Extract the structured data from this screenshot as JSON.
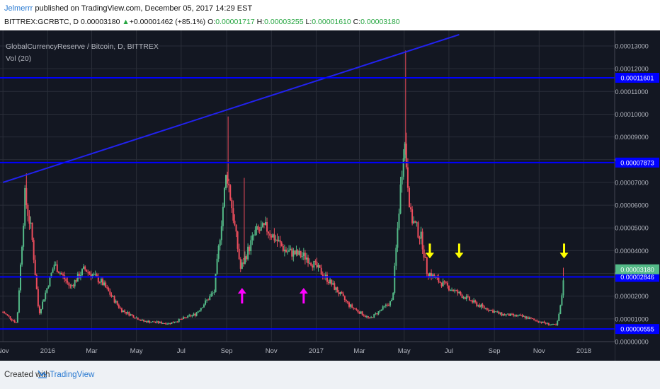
{
  "header": {
    "author": "Jelmerrr",
    "published": " published on TradingView.com, December 05, 2017 14:29 EST",
    "symbol": "BITTREX:GCRBTC, D",
    "last": "0.00003180",
    "change": "+0.00001462 (+85.1%)",
    "o_label": "O:",
    "o_val": "0.00001717",
    "h_label": "H:",
    "h_val": "0.00003255",
    "l_label": "L:",
    "l_val": "0.00001610",
    "c_label": "C:",
    "c_val": "0.00003180"
  },
  "legend": {
    "title": "GlobalCurrencyReserve / Bitcoin, D, BITTREX",
    "vol": "Vol (20)"
  },
  "footer": {
    "created": "Created with",
    "brand": "TradingView"
  },
  "colors": {
    "bg": "#131722",
    "grid": "#2a2e39",
    "up": "#53b987",
    "down": "#eb4d5c",
    "hline": "#0000ff",
    "trend": "#2222ee",
    "yellow": "#ffff00",
    "magenta": "#ff00ff",
    "axis_text": "#b2b5be",
    "label_bg": "#0000ff",
    "price_bg": "#53b987"
  },
  "chart_data": {
    "type": "candlestick",
    "title": "GlobalCurrencyReserve / Bitcoin, D, BITTREX",
    "x_ticks": [
      "Nov",
      "2016",
      "Mar",
      "May",
      "Jul",
      "Sep",
      "Nov",
      "2017",
      "Mar",
      "May",
      "Jul",
      "Sep",
      "Nov",
      "2018"
    ],
    "y_ticks": [
      "0.00013000",
      "0.00012000",
      "0.00011000",
      "0.00010000",
      "0.00009000",
      "0.00008000",
      "0.00007000",
      "0.00006000",
      "0.00005000",
      "0.00004000",
      "0.00003000",
      "0.00002000",
      "0.00001000",
      "0.00000000"
    ],
    "ylim": [
      0,
      0.00013
    ],
    "horizontal_levels": [
      {
        "value": 0.00011601,
        "label": "0.00011601"
      },
      {
        "value": 7.873e-05,
        "label": "0.00007873"
      },
      {
        "value": 2.846e-05,
        "label": "0.00002846"
      },
      {
        "value": 5.55e-06,
        "label": "0.00000555"
      }
    ],
    "last_price": {
      "value": 3.18e-05,
      "label": "0.00003180"
    },
    "close_series": [
      {
        "x": "2015-11-01",
        "y": 1.3e-05
      },
      {
        "x": "2015-11-20",
        "y": 8e-06
      },
      {
        "x": "2015-12-01",
        "y": 6.4e-05
      },
      {
        "x": "2015-12-10",
        "y": 4.8e-05
      },
      {
        "x": "2015-12-20",
        "y": 1.2e-05
      },
      {
        "x": "2016-01-10",
        "y": 3.4e-05
      },
      {
        "x": "2016-02-01",
        "y": 2.4e-05
      },
      {
        "x": "2016-02-20",
        "y": 3.2e-05
      },
      {
        "x": "2016-03-15",
        "y": 2.6e-05
      },
      {
        "x": "2016-04-10",
        "y": 1.4e-05
      },
      {
        "x": "2016-05-10",
        "y": 9e-06
      },
      {
        "x": "2016-06-15",
        "y": 8e-06
      },
      {
        "x": "2016-07-20",
        "y": 1.2e-05
      },
      {
        "x": "2016-08-15",
        "y": 2.2e-05
      },
      {
        "x": "2016-09-01",
        "y": 7.5e-05
      },
      {
        "x": "2016-09-10",
        "y": 5.5e-05
      },
      {
        "x": "2016-09-20",
        "y": 3.2e-05
      },
      {
        "x": "2016-10-10",
        "y": 4.8e-05
      },
      {
        "x": "2016-10-25",
        "y": 5e-05
      },
      {
        "x": "2016-11-20",
        "y": 4e-05
      },
      {
        "x": "2016-12-20",
        "y": 3.7e-05
      },
      {
        "x": "2017-01-15",
        "y": 2.8e-05
      },
      {
        "x": "2017-02-15",
        "y": 1.6e-05
      },
      {
        "x": "2017-03-15",
        "y": 1e-05
      },
      {
        "x": "2017-04-15",
        "y": 1.8e-05
      },
      {
        "x": "2017-05-01",
        "y": 9e-05
      },
      {
        "x": "2017-05-10",
        "y": 5.5e-05
      },
      {
        "x": "2017-05-25",
        "y": 4.5e-05
      },
      {
        "x": "2017-06-01",
        "y": 3.1e-05
      },
      {
        "x": "2017-06-15",
        "y": 2.7e-05
      },
      {
        "x": "2017-07-10",
        "y": 2.2e-05
      },
      {
        "x": "2017-08-10",
        "y": 1.6e-05
      },
      {
        "x": "2017-09-10",
        "y": 1.2e-05
      },
      {
        "x": "2017-10-10",
        "y": 1.1e-05
      },
      {
        "x": "2017-11-10",
        "y": 8e-06
      },
      {
        "x": "2017-11-25",
        "y": 7e-06
      },
      {
        "x": "2017-12-01",
        "y": 1.7e-05
      },
      {
        "x": "2017-12-05",
        "y": 3.18e-05
      }
    ],
    "annotations": [
      {
        "type": "arrow-up",
        "color": "magenta",
        "x": "2016-09-22",
        "y": 1.8e-05
      },
      {
        "type": "arrow-up",
        "color": "magenta",
        "x": "2016-12-15",
        "y": 1.8e-05
      },
      {
        "type": "arrow-down",
        "color": "yellow",
        "x": "2017-06-05",
        "y": 4e-05
      },
      {
        "type": "arrow-down",
        "color": "yellow",
        "x": "2017-07-15",
        "y": 4e-05
      },
      {
        "type": "arrow-down",
        "color": "yellow",
        "x": "2017-12-05",
        "y": 4e-05
      }
    ],
    "trendline": {
      "from": {
        "x": "2015-11-01",
        "y": 7e-05
      },
      "to": {
        "x": "2017-07-15",
        "y": 0.000135
      }
    }
  }
}
